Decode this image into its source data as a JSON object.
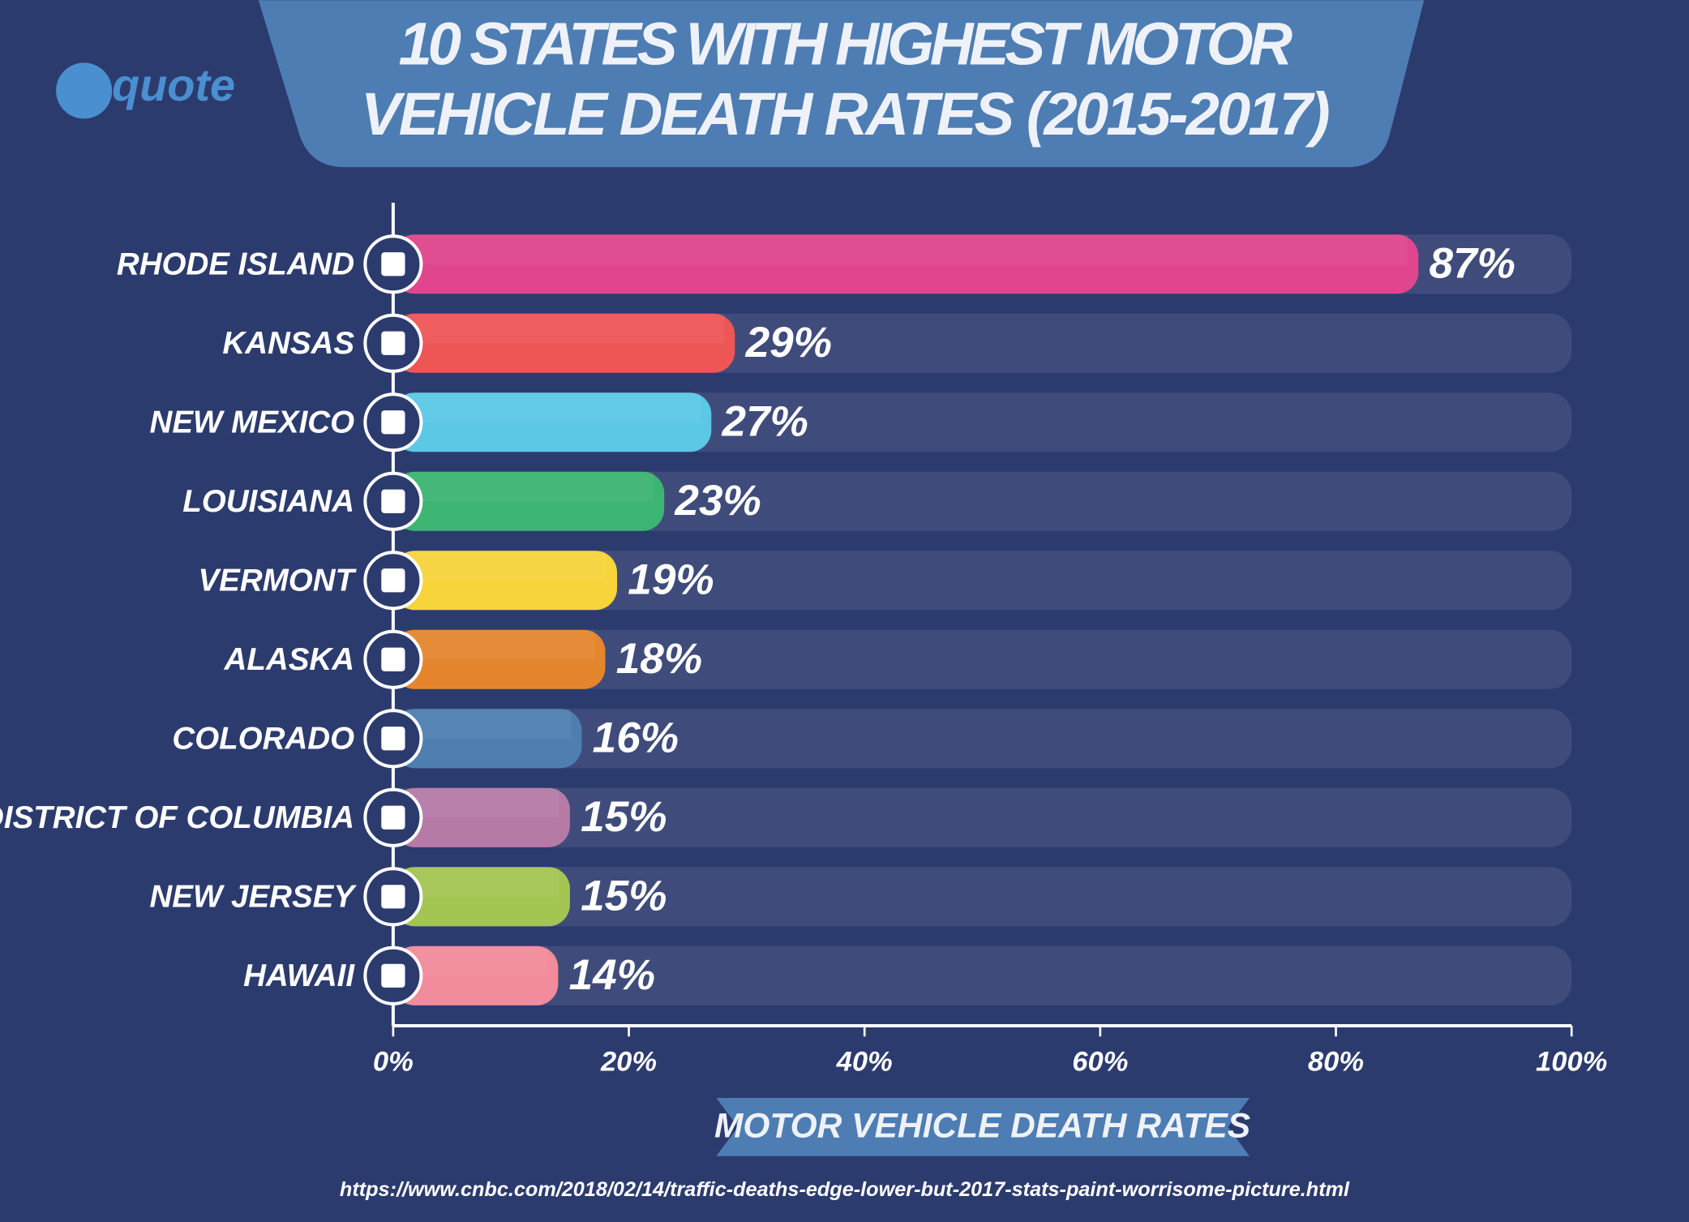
{
  "brand": "quote",
  "chart_data": {
    "type": "bar",
    "title": "10 STATES WITH HIGHEST MOTOR VEHICLE DEATH RATES (2015-2017)",
    "x_label": "MOTOR VEHICLE DEATH RATES",
    "source": "https://www.cnbc.com/2018/02/14/traffic-deaths-edge-lower-but-2017-stats-paint-worrisome-picture.html",
    "categories": [
      "RHODE ISLAND",
      "KANSAS",
      "NEW MEXICO",
      "LOUISIANA",
      "VERMONT",
      "ALASKA",
      "COLORADO",
      "DISTRICT OF COLUMBIA",
      "NEW JERSEY",
      "HAWAII"
    ],
    "values": [
      87,
      29,
      27,
      23,
      19,
      18,
      16,
      15,
      15,
      14
    ],
    "value_labels": [
      "87%",
      "29%",
      "27%",
      "23%",
      "19%",
      "18%",
      "16%",
      "15%",
      "15%",
      "14%"
    ],
    "colors": [
      "#e0468e",
      "#ee5656",
      "#5bc8e6",
      "#3cb572",
      "#f6d43a",
      "#e5862e",
      "#4f7fb0",
      "#b57aa6",
      "#a3c552",
      "#f28b9b"
    ],
    "xlim": [
      0,
      100
    ],
    "xticks": [
      {
        "value": 0,
        "label": "0%"
      },
      {
        "value": 20,
        "label": "20%"
      },
      {
        "value": 40,
        "label": "40%"
      },
      {
        "value": 60,
        "label": "60%"
      },
      {
        "value": 80,
        "label": "80%"
      },
      {
        "value": 100,
        "label": "100%"
      }
    ]
  }
}
